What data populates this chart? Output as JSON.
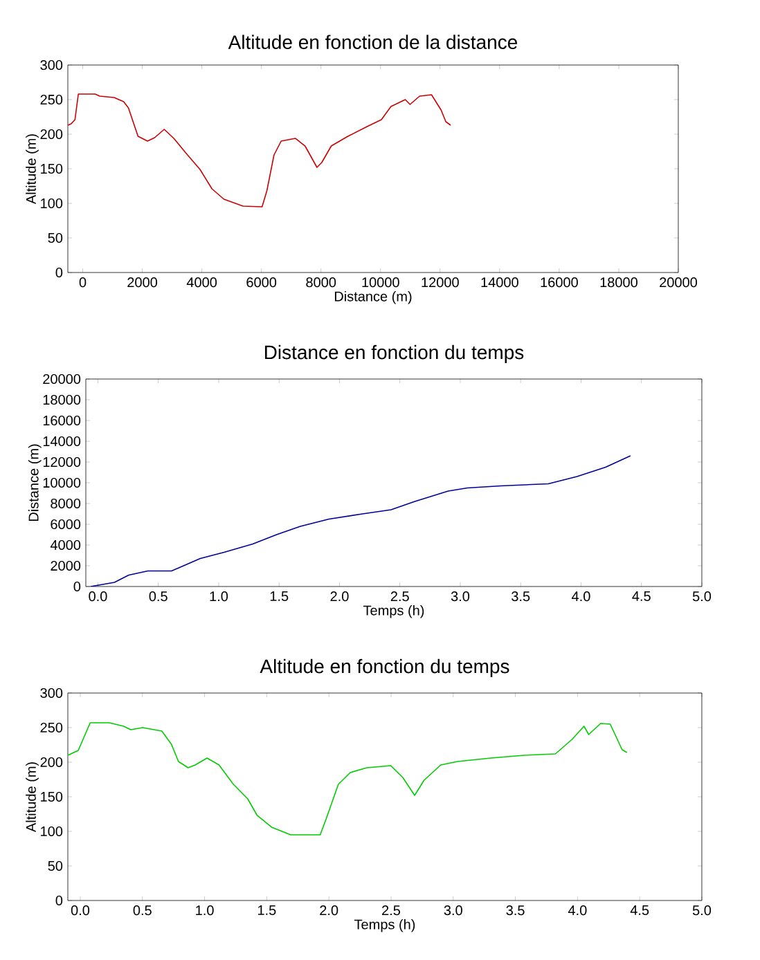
{
  "chart_data": [
    {
      "type": "line",
      "title": "Altitude en fonction de la distance",
      "xlabel": "Distance (m)",
      "ylabel": "Altitude (m)",
      "xlim": [
        -500,
        20000
      ],
      "ylim": [
        0,
        300
      ],
      "xticks": [
        0,
        2000,
        4000,
        6000,
        8000,
        10000,
        12000,
        14000,
        16000,
        18000,
        20000
      ],
      "yticks": [
        0,
        50,
        100,
        150,
        200,
        250,
        300
      ],
      "series": [
        {
          "color": "#cc0000",
          "x": [
            -500,
            -388,
            -260,
            -147,
            414,
            574,
            1054,
            1375,
            1535,
            1856,
            2176,
            2416,
            2737,
            3058,
            3459,
            3939,
            4340,
            4741,
            5382,
            6023,
            6183,
            6424,
            6664,
            7145,
            7466,
            7866,
            8027,
            8347,
            8908,
            9549,
            10030,
            10350,
            10831,
            10991,
            11312,
            11713,
            12033,
            12194,
            12354
          ],
          "values": [
            213,
            215,
            221,
            258,
            258,
            255,
            253,
            247,
            238,
            197,
            190,
            195,
            207,
            194,
            173,
            149,
            121,
            106,
            96,
            95,
            118,
            170,
            190,
            194,
            183,
            152,
            159,
            183,
            197,
            211,
            221,
            240,
            250,
            243,
            255,
            257,
            235,
            218,
            213
          ]
        }
      ]
    },
    {
      "type": "line",
      "title": "Distance en fonction du temps",
      "xlabel": "Temps (h)",
      "ylabel": "Distance (m)",
      "xlim": [
        -0.1,
        5.0
      ],
      "ylim": [
        0,
        20000
      ],
      "xticks": [
        {
          "value": 0,
          "label": "0.0"
        },
        0.5,
        {
          "value": 1,
          "label": "1.0"
        },
        1.5,
        {
          "value": 2,
          "label": "2.0"
        },
        2.5,
        {
          "value": 3,
          "label": "3.0"
        },
        3.5,
        {
          "value": 4,
          "label": "4.0"
        },
        4.5,
        {
          "value": 5,
          "label": "5.0"
        }
      ],
      "yticks": [
        0,
        2000,
        4000,
        6000,
        8000,
        10000,
        12000,
        14000,
        16000,
        18000,
        20000
      ],
      "series": [
        {
          "color": "#000099",
          "x": [
            -0.06,
            0.137,
            0.255,
            0.413,
            0.61,
            0.847,
            1.045,
            1.282,
            1.479,
            1.676,
            1.913,
            2.19,
            2.427,
            2.624,
            2.9,
            3.058,
            3.335,
            3.729,
            3.966,
            4.203,
            4.409
          ],
          "values": [
            0,
            400,
            1100,
            1500,
            1500,
            2700,
            3300,
            4100,
            5000,
            5800,
            6500,
            7000,
            7400,
            8200,
            9200,
            9500,
            9700,
            9900,
            10600,
            11500,
            12600
          ]
        }
      ]
    },
    {
      "type": "line",
      "title": "Altitude en fonction du temps",
      "xlabel": "Temps (h)",
      "ylabel": "Altitude (m)",
      "xlim": [
        -0.1,
        5.0
      ],
      "ylim": [
        0,
        300
      ],
      "xticks": [
        {
          "value": 0,
          "label": "0.0"
        },
        0.5,
        {
          "value": 1,
          "label": "1.0"
        },
        1.5,
        {
          "value": 2,
          "label": "2.0"
        },
        2.5,
        {
          "value": 3,
          "label": "3.0"
        },
        3.5,
        {
          "value": 4,
          "label": "4.0"
        },
        4.5,
        {
          "value": 5,
          "label": "5.0"
        }
      ],
      "yticks": [
        0,
        50,
        100,
        150,
        200,
        250,
        300
      ],
      "series": [
        {
          "color": "#00cc00",
          "x": [
            -0.1,
            -0.016,
            0.08,
            0.234,
            0.349,
            0.406,
            0.502,
            0.656,
            0.733,
            0.79,
            0.867,
            0.925,
            1.02,
            1.116,
            1.232,
            1.347,
            1.423,
            1.539,
            1.692,
            1.884,
            1.93,
            1.98,
            2.076,
            2.172,
            2.306,
            2.498,
            2.594,
            2.69,
            2.766,
            2.9,
            3.035,
            3.304,
            3.572,
            3.822,
            3.956,
            4.052,
            4.09,
            4.186,
            4.263,
            4.359,
            4.398
          ],
          "values": [
            210,
            217,
            257,
            257,
            252,
            247,
            250,
            245,
            226,
            201,
            192,
            196,
            206,
            196,
            168,
            147,
            123,
            106,
            95,
            95,
            95,
            119,
            168,
            185,
            192,
            195,
            178,
            152,
            174,
            196,
            201,
            206,
            210,
            212,
            233,
            252,
            240,
            256,
            255,
            218,
            214
          ]
        }
      ]
    }
  ]
}
